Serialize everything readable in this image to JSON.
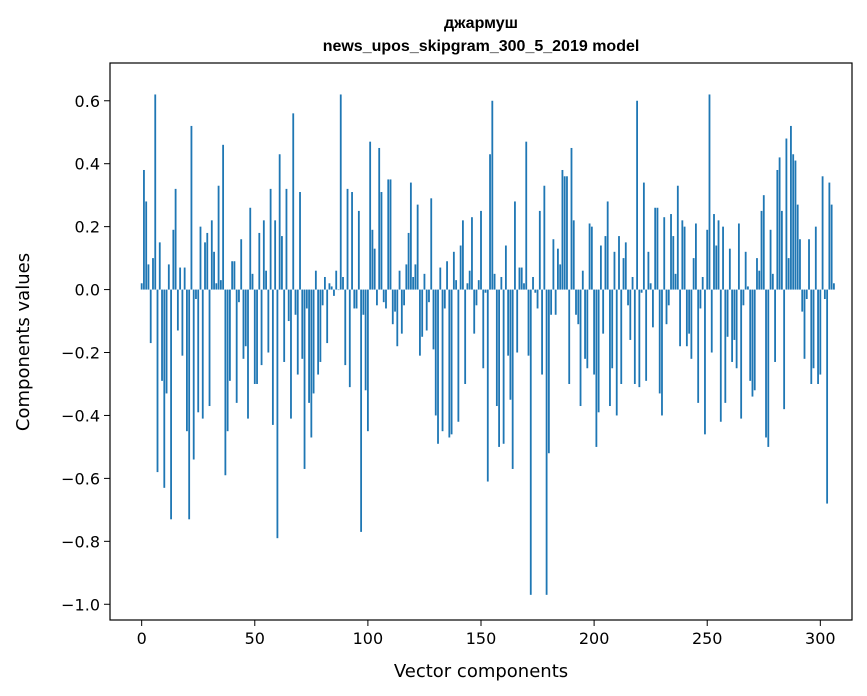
{
  "chart_data": {
    "type": "bar",
    "title_line1": "джармуш",
    "title_line2": "news_upos_skipgram_300_5_2019 model",
    "xlabel": "Vector components",
    "ylabel": "Components values",
    "xlim": [
      -14,
      314
    ],
    "ylim": [
      -1.05,
      0.72
    ],
    "x_ticks": [
      0,
      50,
      100,
      150,
      200,
      250,
      300
    ],
    "x_tick_labels": [
      "0",
      "50",
      "100",
      "150",
      "200",
      "250",
      "300"
    ],
    "y_ticks": [
      0.6,
      0.4,
      0.2,
      0.0,
      -0.2,
      -0.4,
      -0.6,
      -0.8,
      -1.0
    ],
    "y_tick_labels": [
      "0.6",
      "0.4",
      "0.2",
      "0.0",
      "−0.2",
      "−0.4",
      "−0.6",
      "−0.8",
      "−1.0"
    ],
    "bar_color": "#1f77b4",
    "grid": false,
    "legend": "none",
    "values": [
      0.02,
      0.38,
      0.28,
      0.08,
      -0.17,
      0.1,
      0.62,
      -0.58,
      0.15,
      -0.29,
      -0.63,
      -0.33,
      0.08,
      -0.73,
      0.19,
      0.32,
      -0.13,
      0.07,
      -0.21,
      0.07,
      -0.45,
      -0.73,
      0.52,
      -0.54,
      -0.03,
      -0.39,
      0.2,
      -0.41,
      0.15,
      0.18,
      -0.37,
      0.22,
      0.12,
      0.02,
      0.33,
      0.03,
      0.46,
      -0.59,
      -0.45,
      -0.29,
      0.09,
      0.09,
      -0.36,
      -0.04,
      0.16,
      -0.22,
      -0.18,
      -0.41,
      0.26,
      0.05,
      -0.3,
      -0.3,
      0.18,
      -0.24,
      0.22,
      0.06,
      -0.2,
      0.32,
      -0.43,
      0.22,
      -0.79,
      0.43,
      0.17,
      -0.23,
      0.32,
      -0.1,
      -0.41,
      0.56,
      -0.08,
      -0.27,
      0.31,
      -0.22,
      -0.57,
      -0.06,
      -0.36,
      -0.47,
      -0.33,
      0.06,
      -0.27,
      -0.23,
      -0.05,
      0.04,
      -0.17,
      0.02,
      0.01,
      -0.02,
      0.06,
      0.0,
      0.62,
      0.04,
      -0.24,
      0.32,
      -0.31,
      0.31,
      -0.06,
      -0.06,
      0.25,
      -0.77,
      -0.08,
      -0.32,
      -0.45,
      0.47,
      0.19,
      0.13,
      -0.05,
      0.45,
      0.31,
      -0.04,
      -0.06,
      0.35,
      0.35,
      -0.11,
      -0.07,
      -0.18,
      0.06,
      -0.14,
      -0.05,
      0.08,
      0.18,
      0.34,
      0.04,
      0.08,
      0.27,
      -0.21,
      -0.15,
      0.05,
      -0.13,
      -0.04,
      0.29,
      -0.19,
      -0.4,
      -0.49,
      0.07,
      -0.45,
      -0.06,
      0.09,
      -0.47,
      -0.46,
      0.12,
      0.03,
      -0.42,
      0.14,
      0.22,
      -0.3,
      0.02,
      0.06,
      0.23,
      -0.14,
      -0.05,
      0.03,
      0.25,
      -0.25,
      -0.01,
      -0.61,
      0.43,
      0.6,
      0.05,
      -0.37,
      -0.5,
      0.04,
      -0.49,
      0.14,
      -0.21,
      -0.35,
      -0.57,
      0.28,
      -0.2,
      0.07,
      0.07,
      0.02,
      0.47,
      -0.21,
      -0.97,
      0.04,
      -0.01,
      -0.06,
      0.25,
      -0.27,
      0.33,
      -0.97,
      -0.52,
      -0.08,
      0.16,
      -0.08,
      0.13,
      0.08,
      0.38,
      0.36,
      0.36,
      -0.3,
      0.45,
      0.22,
      -0.08,
      -0.11,
      -0.37,
      0.06,
      -0.22,
      -0.25,
      0.21,
      0.2,
      -0.27,
      -0.5,
      -0.39,
      0.14,
      -0.14,
      0.17,
      0.28,
      -0.37,
      -0.25,
      0.12,
      -0.4,
      0.17,
      -0.3,
      0.1,
      0.15,
      -0.05,
      -0.16,
      0.04,
      -0.3,
      0.6,
      -0.31,
      -0.01,
      0.34,
      -0.29,
      0.12,
      0.02,
      -0.12,
      0.26,
      0.26,
      -0.33,
      -0.4,
      0.23,
      -0.11,
      -0.05,
      0.24,
      0.17,
      0.05,
      0.33,
      -0.18,
      0.22,
      0.2,
      -0.18,
      -0.14,
      -0.22,
      0.1,
      0.21,
      -0.36,
      -0.06,
      0.04,
      -0.46,
      0.19,
      0.62,
      -0.2,
      0.24,
      0.14,
      0.22,
      -0.42,
      0.2,
      -0.36,
      -0.15,
      0.13,
      -0.23,
      -0.16,
      -0.25,
      0.21,
      -0.41,
      -0.05,
      0.12,
      0.01,
      -0.29,
      -0.34,
      -0.32,
      0.1,
      0.06,
      0.25,
      0.3,
      -0.47,
      -0.5,
      0.19,
      0.05,
      -0.23,
      0.38,
      0.42,
      0.25,
      -0.38,
      0.48,
      0.1,
      0.52,
      0.43,
      0.41,
      0.27,
      0.16,
      -0.07,
      -0.22,
      -0.03,
      0.16,
      -0.3,
      -0.25,
      0.2,
      -0.3,
      -0.27,
      0.36,
      -0.03,
      -0.68,
      0.34,
      0.27,
      0.02
    ]
  }
}
